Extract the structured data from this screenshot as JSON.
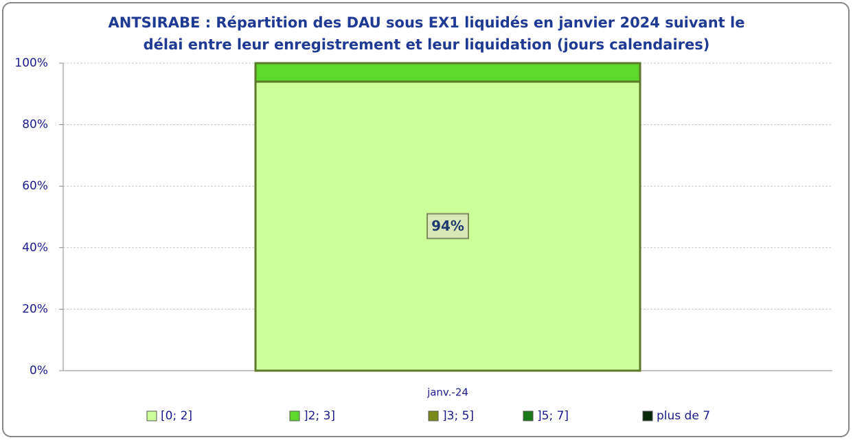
{
  "chart_data": {
    "type": "stacked_bar",
    "title": [
      "ANTSIRABE : Répartition des DAU sous EX1 liquidés en janvier 2024 suivant le",
      "délai entre leur enregistrement et leur liquidation (jours calendaires)"
    ],
    "categories": [
      "janv.-24"
    ],
    "series": [
      {
        "name": "[0; 2]",
        "color": "#ccff99",
        "values": [
          94
        ],
        "value_labels": [
          "94%"
        ]
      },
      {
        "name": "]2; 3]",
        "color": "#5fd82e",
        "values": [
          6
        ]
      },
      {
        "name": "]3; 5]",
        "color": "#7a8a1a",
        "values": [
          0
        ]
      },
      {
        "name": "]5; 7]",
        "color": "#1a7a1a",
        "values": [
          0
        ]
      },
      {
        "name": "plus de 7",
        "color": "#0a2a0a",
        "values": [
          0
        ]
      }
    ],
    "ylim": [
      0,
      100
    ],
    "yticks": [
      {
        "value": 0,
        "label": "0%"
      },
      {
        "value": 20,
        "label": "20%"
      },
      {
        "value": 40,
        "label": "40%"
      },
      {
        "value": 60,
        "label": "60%"
      },
      {
        "value": 80,
        "label": "80%"
      },
      {
        "value": 100,
        "label": "100%"
      }
    ],
    "grid": true,
    "legend": "bottom"
  }
}
